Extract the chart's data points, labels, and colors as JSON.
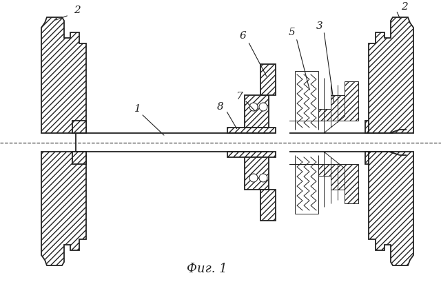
{
  "title": "Фиг. 1",
  "bg_color": "#ffffff",
  "line_color": "#222222",
  "figsize": [
    6.4,
    4.09
  ],
  "dpi": 100
}
